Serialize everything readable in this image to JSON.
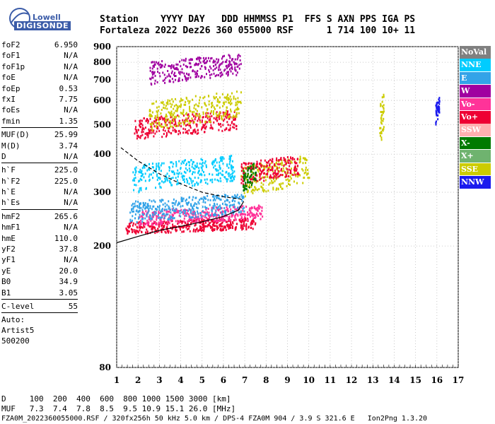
{
  "logo": {
    "line1": "Lowell",
    "line2": "DIGISONDE"
  },
  "header": {
    "line1": "Station    YYYY DAY   DDD HHMMSS P1  FFS S AXN PPS IGA PS",
    "line2": "Fortaleza 2022 Dez26 360 055000 RSF      1 714 100 10+ 11"
  },
  "params": {
    "group1": [
      {
        "label": "foF2",
        "value": "6.950"
      },
      {
        "label": "foF1",
        "value": "N/A"
      },
      {
        "label": "foF1p",
        "value": "N/A"
      },
      {
        "label": "foE",
        "value": "N/A"
      },
      {
        "label": "foEp",
        "value": "0.53"
      },
      {
        "label": "fxI",
        "value": "7.75"
      },
      {
        "label": "foEs",
        "value": "N/A"
      },
      {
        "label": "fmin",
        "value": "1.35"
      }
    ],
    "group2": [
      {
        "label": "MUF(D)",
        "value": "25.99"
      },
      {
        "label": "M(D)",
        "value": "3.74"
      },
      {
        "label": "D",
        "value": "N/A"
      }
    ],
    "group3": [
      {
        "label": "h`F",
        "value": "225.0"
      },
      {
        "label": "h`F2",
        "value": "225.0"
      },
      {
        "label": "h`E",
        "value": "N/A"
      },
      {
        "label": "h`Es",
        "value": "N/A"
      }
    ],
    "group4": [
      {
        "label": "hmF2",
        "value": "265.6"
      },
      {
        "label": "hmF1",
        "value": "N/A"
      },
      {
        "label": "hmE",
        "value": "110.0"
      },
      {
        "label": "yF2",
        "value": "37.8"
      },
      {
        "label": "yF1",
        "value": "N/A"
      },
      {
        "label": "yE",
        "value": "20.0"
      },
      {
        "label": "B0",
        "value": "34.9"
      },
      {
        "label": "B1",
        "value": "3.05"
      }
    ],
    "group5": [
      {
        "label": "C-level",
        "value": "55"
      }
    ],
    "autoscale": [
      "Auto:",
      "Artist5",
      "500200"
    ]
  },
  "footer": {
    "line1": "D     100  200  400  600  800 1000 1500 3000 [km]",
    "line2": "MUF   7.3  7.4  7.8  8.5  9.5 10.9 15.1 26.0 [MHz]",
    "line3": "FZA0M_2022360055000.RSF / 320fx256h 50 kHz 5.0 km / DPS-4 FZA0M 904 / 3.9 S 321.6 E   Ion2Png 1.3.20"
  },
  "legend": [
    {
      "label": "NoVal",
      "color": "#808080"
    },
    {
      "label": "NNE",
      "color": "#00ccff"
    },
    {
      "label": "E",
      "color": "#33a3e8"
    },
    {
      "label": "W",
      "color": "#a000a0"
    },
    {
      "label": "Vo-",
      "color": "#ff3399"
    },
    {
      "label": "Vo+",
      "color": "#ee0033"
    },
    {
      "label": "SSW",
      "color": "#ffb0b0"
    },
    {
      "label": "X-",
      "color": "#007a00"
    },
    {
      "label": "X+",
      "color": "#6fb36f"
    },
    {
      "label": "SSE",
      "color": "#cccc00"
    },
    {
      "label": "NNW",
      "color": "#1a1aee"
    }
  ],
  "chart_data": {
    "type": "scatter",
    "title": "",
    "xlabel": "",
    "ylabel": "",
    "xlim": [
      1,
      17
    ],
    "ylim": [
      80,
      900
    ],
    "x_ticks": [
      1,
      2,
      3,
      4,
      5,
      6,
      7,
      8,
      9,
      10,
      11,
      12,
      13,
      14,
      15,
      16,
      17
    ],
    "y_ticks": [
      80,
      200,
      300,
      400,
      500,
      600,
      700,
      800,
      900
    ],
    "y_scale": "log",
    "grid": true,
    "legend_position": "right",
    "clusters": [
      {
        "series": "Vo+",
        "f": [
          1.4,
          7.5
        ],
        "h": [
          220,
          250
        ]
      },
      {
        "series": "Vo-",
        "f": [
          2.0,
          7.8
        ],
        "h": [
          235,
          275
        ]
      },
      {
        "series": "E",
        "f": [
          1.6,
          7.0
        ],
        "h": [
          240,
          300
        ]
      },
      {
        "series": "NNE",
        "f": [
          1.7,
          6.5
        ],
        "h": [
          300,
          400
        ]
      },
      {
        "series": "SSE",
        "f": [
          6.8,
          10.0
        ],
        "h": [
          290,
          400
        ]
      },
      {
        "series": "Vo+",
        "f": [
          1.8,
          6.6
        ],
        "h": [
          450,
          560
        ]
      },
      {
        "series": "SSE",
        "f": [
          2.5,
          6.8
        ],
        "h": [
          480,
          650
        ]
      },
      {
        "series": "W",
        "f": [
          2.5,
          6.8
        ],
        "h": [
          680,
          860
        ]
      },
      {
        "series": "Vo+",
        "f": [
          6.8,
          9.5
        ],
        "h": [
          320,
          400
        ]
      },
      {
        "series": "X-",
        "f": [
          6.9,
          7.5
        ],
        "h": [
          300,
          380
        ]
      },
      {
        "series": "SSE",
        "f": [
          13.3,
          13.5
        ],
        "h": [
          420,
          650
        ]
      },
      {
        "series": "NNW",
        "f": [
          15.9,
          16.1
        ],
        "h": [
          500,
          620
        ]
      }
    ],
    "profile_solid": {
      "f": [
        1.0,
        2.0,
        3.0,
        4.0,
        5.0,
        6.0,
        6.7,
        6.95
      ],
      "h": [
        205,
        215,
        225,
        232,
        240,
        250,
        262,
        280
      ]
    },
    "profile_dashed": {
      "f": [
        1.2,
        2.0,
        3.0,
        4.0,
        5.0,
        6.0,
        6.8,
        6.95
      ],
      "h": [
        420,
        380,
        345,
        320,
        300,
        290,
        285,
        280
      ]
    }
  }
}
